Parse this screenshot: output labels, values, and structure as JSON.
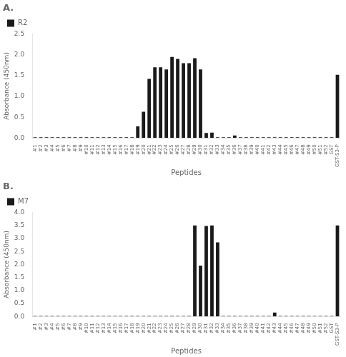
{
  "chart_data": [
    {
      "type": "bar",
      "title": "A.",
      "xlabel": "Peptides",
      "ylabel": "Absorbance (450nm)",
      "categories": [
        "#1",
        "#2",
        "#3",
        "#4",
        "#5",
        "#6",
        "#7",
        "#8",
        "#9",
        "#10",
        "#11",
        "#12",
        "#13",
        "#14",
        "#15",
        "#16",
        "#17",
        "#18",
        "#19",
        "#20",
        "#21",
        "#22",
        "#23",
        "#24",
        "#25",
        "#26",
        "#27",
        "#28",
        "#29",
        "#30",
        "#31",
        "#32",
        "#33",
        "#34",
        "#35",
        "#36",
        "#37",
        "#38",
        "#39",
        "#40",
        "#41",
        "#42",
        "#43",
        "#44",
        "#45",
        "#46",
        "#47",
        "#48",
        "#49",
        "#50",
        "#51",
        "#52",
        "GST",
        "GST-S3-P"
      ],
      "series": [
        {
          "name": "R2",
          "color": "#1a1a1a",
          "values": [
            0.02,
            0.02,
            0.02,
            0.02,
            0.02,
            0.02,
            0.02,
            0.02,
            0.02,
            0.02,
            0.02,
            0.02,
            0.02,
            0.02,
            0.02,
            0.02,
            0.02,
            0.02,
            0.28,
            0.63,
            1.42,
            1.7,
            1.7,
            1.65,
            1.95,
            1.9,
            1.8,
            1.8,
            1.92,
            1.65,
            0.12,
            0.13,
            0.02,
            0.02,
            0.02,
            0.06,
            0.02,
            0.02,
            0.02,
            0.02,
            0.02,
            0.02,
            0.02,
            0.02,
            0.02,
            0.02,
            0.02,
            0.02,
            0.02,
            0.02,
            0.02,
            0.02,
            0.02,
            1.52
          ]
        }
      ],
      "ylim": [
        0,
        2.5
      ],
      "yticks": [
        {
          "value": 0,
          "label": "0.0"
        },
        0.5,
        {
          "value": 1.0,
          "label": "1.0"
        },
        1.5,
        {
          "value": 2.0,
          "label": "2.0"
        },
        2.5
      ],
      "grid": false,
      "legend": "upper left"
    },
    {
      "type": "bar",
      "title": "B.",
      "xlabel": "Peptides",
      "ylabel": "Absorbance (450nm)",
      "categories": [
        "#1",
        "#2",
        "#3",
        "#4",
        "#5",
        "#6",
        "#7",
        "#8",
        "#9",
        "#10",
        "#11",
        "#12",
        "#13",
        "#14",
        "#15",
        "#16",
        "#17",
        "#18",
        "#19",
        "#20",
        "#21",
        "#22",
        "#23",
        "#24",
        "#25",
        "#26",
        "#27",
        "#28",
        "#29",
        "#30",
        "#31",
        "#32",
        "#33",
        "#34",
        "#35",
        "#36",
        "#37",
        "#38",
        "#39",
        "#40",
        "#41",
        "#42",
        "#43",
        "#44",
        "#45",
        "#46",
        "#47",
        "#48",
        "#49",
        "#50",
        "#51",
        "#52",
        "GST",
        "GST-S3-P"
      ],
      "series": [
        {
          "name": "M7",
          "color": "#1a1a1a",
          "values": [
            0.02,
            0.02,
            0.02,
            0.02,
            0.02,
            0.02,
            0.02,
            0.02,
            0.02,
            0.02,
            0.02,
            0.02,
            0.02,
            0.02,
            0.02,
            0.02,
            0.02,
            0.02,
            0.02,
            0.02,
            0.02,
            0.02,
            0.02,
            0.02,
            0.02,
            0.02,
            0.02,
            0.02,
            3.5,
            1.96,
            3.48,
            3.5,
            2.85,
            0.02,
            0.02,
            0.02,
            0.02,
            0.02,
            0.02,
            0.02,
            0.02,
            0.02,
            0.15,
            0.02,
            0.02,
            0.02,
            0.02,
            0.02,
            0.02,
            0.02,
            0.02,
            0.02,
            0.02,
            3.5
          ]
        }
      ],
      "ylim": [
        0,
        4
      ],
      "yticks": [
        {
          "value": 0,
          "label": "0.0"
        },
        0.5,
        {
          "value": 1.0,
          "label": "1.0"
        },
        1.5,
        {
          "value": 2.0,
          "label": "2.0"
        },
        2.5,
        {
          "value": 3.0,
          "label": "3.0"
        },
        3.5,
        {
          "value": 4.0,
          "label": "4.0"
        }
      ],
      "grid": false,
      "legend": "upper left"
    }
  ]
}
